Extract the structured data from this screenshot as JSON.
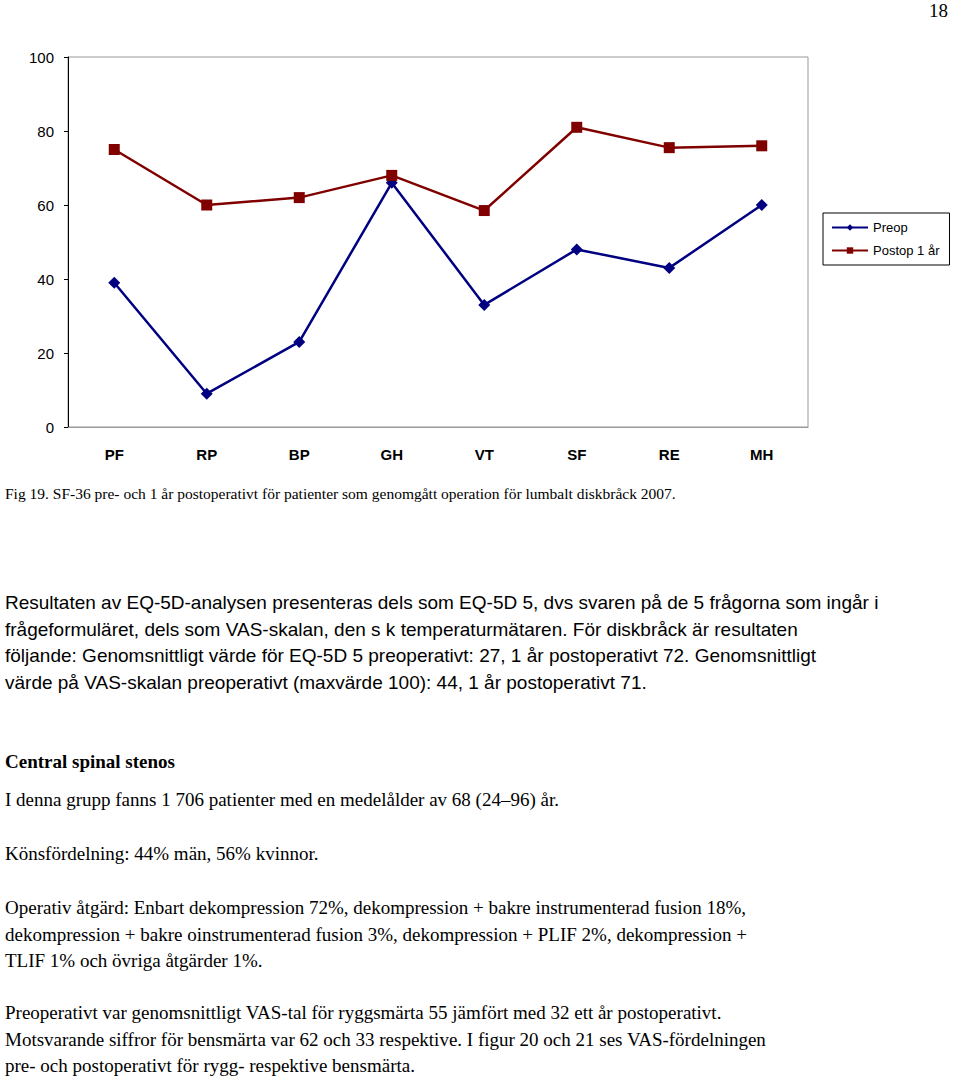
{
  "page_number": "18",
  "chart_data": {
    "type": "line",
    "categories": [
      "PF",
      "RP",
      "BP",
      "GH",
      "VT",
      "SF",
      "RE",
      "MH"
    ],
    "series": [
      {
        "name": "Preop",
        "color": "#000080",
        "marker": "diamond",
        "line_style": "solid",
        "values": [
          39,
          9,
          23,
          66,
          33,
          48,
          43,
          60
        ]
      },
      {
        "name": "Postop 1 år",
        "color": "#800000",
        "marker": "square",
        "line_style": "solid",
        "values": [
          75,
          60,
          62,
          68,
          58.5,
          81,
          75.5,
          76
        ]
      }
    ],
    "ylim": [
      0,
      100
    ],
    "yticks": [
      0,
      20,
      40,
      60,
      80,
      100
    ],
    "grid": false,
    "legend": "right"
  },
  "caption": "Fig 19. SF-36 pre- och 1 år postoperativt för patienter som genomgått operation för lumbalt diskbråck 2007.",
  "eq5d_paragraph": [
    "Resultaten av EQ-5D-analysen presenteras dels som EQ-5D 5, dvs svaren på de 5 frågorna som ingår i",
    "frågeformuläret, dels som VAS-skalan, den s k temperaturmätaren. För diskbråck är resultaten",
    "följande: Genomsnittligt värde för EQ-5D 5 preoperativt: 27, 1 år postoperativt 72. Genomsnittligt",
    "värde på VAS-skalan preoperativt (maxvärde 100): 44, 1 år postoperativt 71."
  ],
  "section": {
    "heading": "Central spinal stenos",
    "paragraphs": [
      [
        "I denna grupp fanns 1 706 patienter med en medelålder av 68 (24–96) år."
      ],
      [
        "Könsfördelning: 44% män, 56% kvinnor."
      ],
      [
        "Operativ åtgärd: Enbart dekompression 72%, dekompression + bakre instrumenterad fusion 18%,",
        "dekompression + bakre oinstrumenterad fusion 3%, dekompression + PLIF 2%, dekompression +",
        "TLIF 1% och övriga åtgärder 1%."
      ],
      [
        "Preoperativt var genomsnittligt VAS-tal för ryggsmärta 55 jämfört med 32 ett år postoperativt.",
        "Motsvarande siffror för bensmärta var 62 och 33 respektive. I figur 20 och 21 ses VAS-fördelningen",
        "pre- och postoperativt för rygg- respektive bensmärta."
      ]
    ]
  }
}
